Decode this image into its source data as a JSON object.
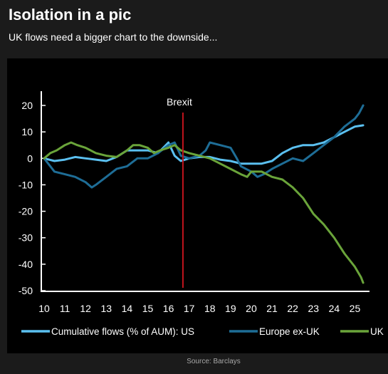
{
  "header": {
    "title": "Isolation in a pic",
    "subtitle": "UK flows need a bigger chart to the downside..."
  },
  "footer": {
    "source": "Source: Barclays"
  },
  "colors": {
    "background": "#1b1b1b",
    "panel": "#000000",
    "us": "#5bc0f0",
    "europe": "#1e6d96",
    "uk": "#6aa43a",
    "brexit_line": "#c0141c",
    "axis": "#ffffff"
  },
  "chart_data": {
    "type": "line",
    "title": "",
    "xlabel": "",
    "ylabel": "",
    "xlim": [
      10,
      25.5
    ],
    "ylim": [
      -50,
      20
    ],
    "xticks": [
      "10",
      "11",
      "12",
      "13",
      "14",
      "15",
      "16",
      "17",
      "18",
      "19",
      "20",
      "21",
      "22",
      "23",
      "24",
      "25"
    ],
    "yticks": [
      "20",
      "10",
      "0",
      "-10",
      "-20",
      "-30",
      "-40",
      "-50"
    ],
    "grid": false,
    "legend_position": "bottom",
    "annotations": [
      {
        "label": "Brexit",
        "x": 16.7,
        "type": "vertical-line"
      }
    ],
    "series": [
      {
        "name": "Cumulative flows (% of AUM): US",
        "color": "#5bc0f0",
        "points": [
          [
            10,
            0
          ],
          [
            10.5,
            -1
          ],
          [
            11,
            -0.5
          ],
          [
            11.5,
            0.5
          ],
          [
            12,
            0
          ],
          [
            12.5,
            -0.5
          ],
          [
            13,
            -1
          ],
          [
            13.5,
            0.5
          ],
          [
            14,
            3
          ],
          [
            14.5,
            3
          ],
          [
            15,
            3
          ],
          [
            15.5,
            2
          ],
          [
            16,
            6
          ],
          [
            16.3,
            1
          ],
          [
            16.6,
            -1
          ],
          [
            17,
            0
          ],
          [
            17.5,
            0.5
          ],
          [
            18,
            0.5
          ],
          [
            18.5,
            -0.5
          ],
          [
            19,
            -1
          ],
          [
            19.5,
            -2
          ],
          [
            20,
            -2
          ],
          [
            20.5,
            -2
          ],
          [
            21,
            -1
          ],
          [
            21.5,
            2
          ],
          [
            22,
            4
          ],
          [
            22.5,
            5
          ],
          [
            23,
            5
          ],
          [
            23.5,
            6
          ],
          [
            24,
            8
          ],
          [
            24.5,
            10
          ],
          [
            25,
            12
          ],
          [
            25.4,
            12.5
          ]
        ]
      },
      {
        "name": "Europe ex-UK",
        "color": "#1e6d96",
        "points": [
          [
            10,
            0
          ],
          [
            10.5,
            -5
          ],
          [
            11,
            -6
          ],
          [
            11.5,
            -7
          ],
          [
            12,
            -9
          ],
          [
            12.3,
            -11
          ],
          [
            12.5,
            -10
          ],
          [
            13,
            -7
          ],
          [
            13.5,
            -4
          ],
          [
            14,
            -3
          ],
          [
            14.5,
            0
          ],
          [
            15,
            0
          ],
          [
            15.5,
            2
          ],
          [
            16,
            5
          ],
          [
            16.3,
            6
          ],
          [
            16.6,
            1
          ],
          [
            17,
            0
          ],
          [
            17.5,
            1
          ],
          [
            17.8,
            3
          ],
          [
            18,
            6
          ],
          [
            18.5,
            5
          ],
          [
            19,
            4
          ],
          [
            19.3,
            0
          ],
          [
            19.5,
            -3
          ],
          [
            20,
            -5
          ],
          [
            20.3,
            -7
          ],
          [
            20.6,
            -6
          ],
          [
            21,
            -4
          ],
          [
            21.5,
            -2
          ],
          [
            22,
            0
          ],
          [
            22.5,
            -1
          ],
          [
            23,
            2
          ],
          [
            23.5,
            5
          ],
          [
            24,
            8
          ],
          [
            24.5,
            12
          ],
          [
            25,
            15
          ],
          [
            25.2,
            17
          ],
          [
            25.4,
            20
          ]
        ]
      },
      {
        "name": "UK",
        "color": "#6aa43a",
        "points": [
          [
            10,
            0
          ],
          [
            10.3,
            2
          ],
          [
            10.6,
            3
          ],
          [
            11,
            5
          ],
          [
            11.3,
            6
          ],
          [
            11.6,
            5
          ],
          [
            12,
            4
          ],
          [
            12.5,
            2
          ],
          [
            13,
            1
          ],
          [
            13.5,
            0.5
          ],
          [
            14,
            3
          ],
          [
            14.3,
            5
          ],
          [
            14.6,
            5
          ],
          [
            15,
            4
          ],
          [
            15.3,
            2
          ],
          [
            15.6,
            3
          ],
          [
            16,
            4
          ],
          [
            16.3,
            5
          ],
          [
            16.6,
            3
          ],
          [
            17,
            2
          ],
          [
            17.5,
            1
          ],
          [
            18,
            0
          ],
          [
            18.5,
            -2
          ],
          [
            19,
            -4
          ],
          [
            19.5,
            -6
          ],
          [
            19.8,
            -7
          ],
          [
            20,
            -5
          ],
          [
            20.5,
            -5
          ],
          [
            21,
            -7
          ],
          [
            21.5,
            -8
          ],
          [
            22,
            -11
          ],
          [
            22.5,
            -15
          ],
          [
            23,
            -21
          ],
          [
            23.5,
            -25
          ],
          [
            24,
            -30
          ],
          [
            24.5,
            -36
          ],
          [
            25,
            -41
          ],
          [
            25.3,
            -45
          ],
          [
            25.4,
            -47
          ]
        ]
      }
    ]
  }
}
